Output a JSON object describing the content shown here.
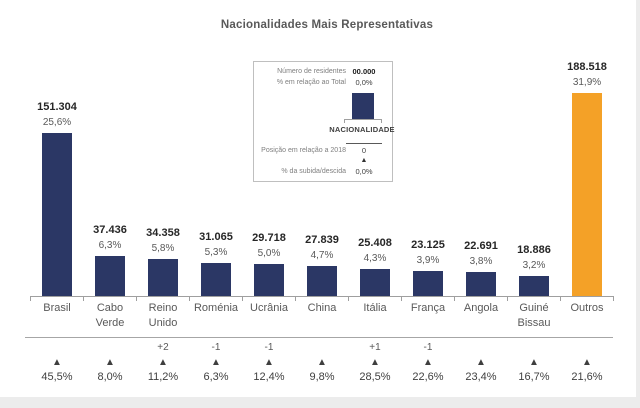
{
  "title": "Nacionalidades Mais Representativas",
  "colors": {
    "bar": "#2b3765",
    "bar_highlight": "#f4a127",
    "axis": "#9f9f9f",
    "value_text": "#262626",
    "secondary_text": "#595959",
    "legend_border": "#bfbfbf"
  },
  "legend": {
    "residents_label": "Número de residentes",
    "residents_value": "00.000",
    "total_label": "% em relação ao Total",
    "total_value": "0,0%",
    "bar_label": "NACIONALIDADE",
    "position_label": "Posição em relação a 2018",
    "position_value": "0",
    "direction_marker": "▲",
    "change_label": "% da subida/descida",
    "change_value": "0,0%"
  },
  "chart_data": {
    "type": "bar",
    "title": "Nacionalidades Mais Representativas",
    "categories": [
      "Brasil",
      "Cabo Verde",
      "Reino Unido",
      "Roménia",
      "Ucrânia",
      "China",
      "Itália",
      "França",
      "Angola",
      "Guiné Bissau",
      "Outros"
    ],
    "values": [
      151304,
      37436,
      34358,
      31065,
      29718,
      27839,
      25408,
      23125,
      22691,
      18886,
      188518
    ],
    "value_labels": [
      "151.304",
      "37.436",
      "34.358",
      "31.065",
      "29.718",
      "27.839",
      "25.408",
      "23.125",
      "22.691",
      "18.886",
      "188.518"
    ],
    "percent_of_total": [
      "25,6%",
      "6,3%",
      "5,8%",
      "5,3%",
      "5,0%",
      "4,7%",
      "4,3%",
      "3,9%",
      "3,8%",
      "3,2%",
      "31,9%"
    ],
    "position_change_vs_2018": [
      "",
      "",
      "+2",
      "-1",
      "-1",
      "",
      "+1",
      "-1",
      "",
      "",
      ""
    ],
    "direction_markers": [
      "▲",
      "▲",
      "▲",
      "▲",
      "▲",
      "▲",
      "▲",
      "▲",
      "▲",
      "▲",
      "▲"
    ],
    "change_percent": [
      "45,5%",
      "8,0%",
      "11,2%",
      "6,3%",
      "12,4%",
      "9,8%",
      "28,5%",
      "22,6%",
      "23,4%",
      "16,7%",
      "21,6%"
    ],
    "highlight_index": 10,
    "ylim": [
      0,
      188518
    ],
    "grid": false,
    "value_axis_visible": false,
    "legend_position": "top-center"
  }
}
